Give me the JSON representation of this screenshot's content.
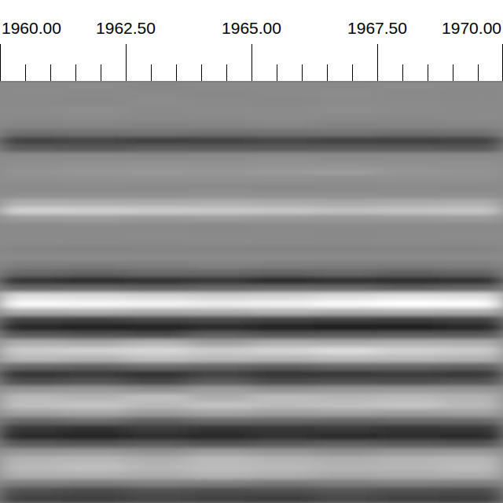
{
  "chart_data": {
    "type": "heatmap",
    "xlim": [
      1960,
      1970
    ],
    "xticks": [
      {
        "value": 1960,
        "label": "1960.00"
      },
      {
        "value": 1962.5,
        "label": "1962.50"
      },
      {
        "value": 1965,
        "label": "1965.00"
      },
      {
        "value": 1967.5,
        "label": "1967.50"
      },
      {
        "value": 1970,
        "label": "1970.00"
      }
    ],
    "minor_xticks": [
      1960.5,
      1961,
      1961.5,
      1962,
      1963,
      1963.5,
      1964,
      1964.5,
      1965.5,
      1966,
      1966.5,
      1967,
      1968,
      1968.5,
      1969,
      1969.5
    ],
    "value_range": [
      -1,
      1
    ],
    "cells": [
      [
        0,
        0.02,
        -0.02,
        0,
        0.01,
        -0.01,
        0.02,
        0
      ],
      [
        0.01,
        0,
        0,
        -0.02,
        0,
        0.02,
        0,
        -0.01
      ],
      [
        0,
        -0.01,
        0.02,
        0,
        -0.01,
        0,
        0.01,
        0
      ],
      [
        0.02,
        0.03,
        0,
        0.02,
        0.01,
        0.03,
        0.02,
        0
      ],
      [
        0,
        0.01,
        -0.01,
        0,
        0.02,
        0,
        -0.01,
        0.01
      ],
      [
        -0.05,
        -0.04,
        -0.06,
        -0.05,
        -0.03,
        -0.06,
        -0.05,
        -0.04
      ],
      [
        -0.22,
        -0.2,
        -0.18,
        -0.21,
        -0.2,
        -0.19,
        -0.22,
        -0.2
      ],
      [
        -0.6,
        -0.58,
        -0.62,
        -0.6,
        -0.57,
        -0.6,
        -0.63,
        -0.6
      ],
      [
        -0.4,
        -0.42,
        -0.38,
        -0.4,
        -0.41,
        -0.39,
        -0.4,
        -0.42
      ],
      [
        0,
        0.01,
        -0.01,
        0,
        0.02,
        0,
        0.01,
        0
      ],
      [
        0.04,
        0.05,
        0.06,
        0.05,
        0.07,
        0.06,
        0.04,
        0.05
      ],
      [
        0.08,
        0.1,
        0.12,
        0.1,
        0.14,
        0.15,
        0.1,
        0.08
      ],
      [
        0.04,
        0.05,
        0.05,
        0.06,
        0.05,
        0.04,
        0.05,
        0.05
      ],
      [
        0,
        0.01,
        0,
        0,
        -0.01,
        0,
        0.01,
        0
      ],
      [
        0.04,
        0.05,
        0.05,
        0.06,
        0.05,
        0.05,
        0.04,
        0.05
      ],
      [
        0.32,
        0.3,
        0.28,
        0.3,
        0.27,
        0.25,
        0.28,
        0.3
      ],
      [
        0.6,
        0.58,
        0.55,
        0.52,
        0.5,
        0.45,
        0.48,
        0.5
      ],
      [
        0.15,
        0.16,
        0.14,
        0.15,
        0.13,
        0.12,
        0.14,
        0.15
      ],
      [
        0,
        0.01,
        0,
        -0.01,
        0,
        0.01,
        0,
        0
      ],
      [
        0,
        0,
        0.01,
        0,
        0,
        -0.01,
        0,
        0.01
      ],
      [
        0.01,
        0,
        0,
        0.01,
        0,
        0,
        0.01,
        0
      ],
      [
        -0.05,
        -0.06,
        -0.04,
        -0.05,
        -0.06,
        -0.05,
        -0.04,
        -0.05
      ],
      [
        0,
        0.01,
        0,
        0,
        0.01,
        0,
        0,
        0
      ],
      [
        -0.1,
        -0.12,
        -0.1,
        -0.08,
        -0.1,
        -0.11,
        -0.12,
        -0.1
      ],
      [
        -0.3,
        -0.32,
        -0.28,
        -0.3,
        -0.33,
        -0.3,
        -0.35,
        -0.32
      ],
      [
        -0.72,
        -0.78,
        -0.74,
        -0.7,
        -0.8,
        -0.76,
        -0.78,
        -0.75
      ],
      [
        -0.3,
        -0.28,
        -0.32,
        -0.3,
        -0.26,
        -0.28,
        -0.35,
        -0.3
      ],
      [
        0.72,
        0.7,
        0.65,
        0.6,
        0.62,
        0.7,
        0.75,
        0.72
      ],
      [
        0.95,
        0.92,
        0.9,
        0.85,
        0.88,
        0.95,
        1,
        0.98
      ],
      [
        0.3,
        0.32,
        0.28,
        0.3,
        0.35,
        0.3,
        0.32,
        0.3
      ],
      [
        -0.6,
        -0.62,
        -0.58,
        -0.55,
        -0.6,
        -0.62,
        -0.65,
        -0.6
      ],
      [
        -0.85,
        -0.9,
        -0.88,
        -0.8,
        -0.9,
        -0.95,
        -0.92,
        -0.85
      ],
      [
        -0.4,
        -0.45,
        -0.5,
        -0.35,
        -0.42,
        -0.4,
        -0.38,
        -0.4
      ],
      [
        0.3,
        0.25,
        0.35,
        0.2,
        0.3,
        0.28,
        0.32,
        0.3
      ],
      [
        0.55,
        0.6,
        0.65,
        0.55,
        0.62,
        0.7,
        0.6,
        0.55
      ],
      [
        0.4,
        0.35,
        0.45,
        0.4,
        0.38,
        0.42,
        0.4,
        0.35
      ],
      [
        -0.3,
        -0.32,
        -0.25,
        -0.3,
        -0.35,
        -0.28,
        -0.3,
        -0.32
      ],
      [
        -0.72,
        -0.68,
        -0.75,
        -0.6,
        -0.72,
        -0.7,
        -0.65,
        -0.7
      ],
      [
        -0.5,
        -0.45,
        -0.55,
        -0.4,
        -0.52,
        -0.48,
        -0.5,
        -0.45
      ],
      [
        0.1,
        0.12,
        0.05,
        0.15,
        0.08,
        0.1,
        0.12,
        0.1
      ],
      [
        0.4,
        0.35,
        0.45,
        0.3,
        0.42,
        0.38,
        0.4,
        0.35
      ],
      [
        0.45,
        0.5,
        0.4,
        0.48,
        0.42,
        0.45,
        0.5,
        0.4
      ],
      [
        0.2,
        0.25,
        0.15,
        0.22,
        0.18,
        0.2,
        0.15,
        0.2
      ],
      [
        -0.3,
        -0.25,
        -0.35,
        -0.28,
        -0.3,
        -0.32,
        -0.3,
        -0.28
      ],
      [
        -0.7,
        -0.75,
        -0.65,
        -0.72,
        -0.7,
        -0.68,
        -0.72,
        -0.7
      ],
      [
        -0.8,
        -0.85,
        -0.78,
        -0.82,
        -0.75,
        -0.8,
        -0.78,
        -0.8
      ],
      [
        -0.4,
        -0.42,
        -0.38,
        -0.45,
        -0.4,
        -0.35,
        -0.4,
        -0.42
      ],
      [
        0.1,
        0.12,
        0.08,
        0.15,
        0.1,
        0.05,
        0.1,
        0.12
      ],
      [
        0.35,
        0.38,
        0.32,
        0.4,
        0.35,
        0.3,
        0.35,
        0.38
      ],
      [
        0.4,
        0.45,
        0.38,
        0.42,
        0.4,
        0.35,
        0.38,
        0.42
      ],
      [
        0.3,
        0.32,
        0.28,
        0.35,
        0.3,
        0.25,
        0.28,
        0.3
      ],
      [
        -0.1,
        -0.12,
        -0.08,
        -0.1,
        -0.15,
        -0.1,
        -0.08,
        -0.1
      ],
      [
        -0.5,
        -0.55,
        -0.48,
        -0.52,
        -0.5,
        -0.45,
        -0.5,
        -0.52
      ],
      [
        -0.6,
        -0.62,
        -0.58,
        -0.6,
        -0.65,
        -0.55,
        -0.6,
        -0.62
      ]
    ]
  }
}
